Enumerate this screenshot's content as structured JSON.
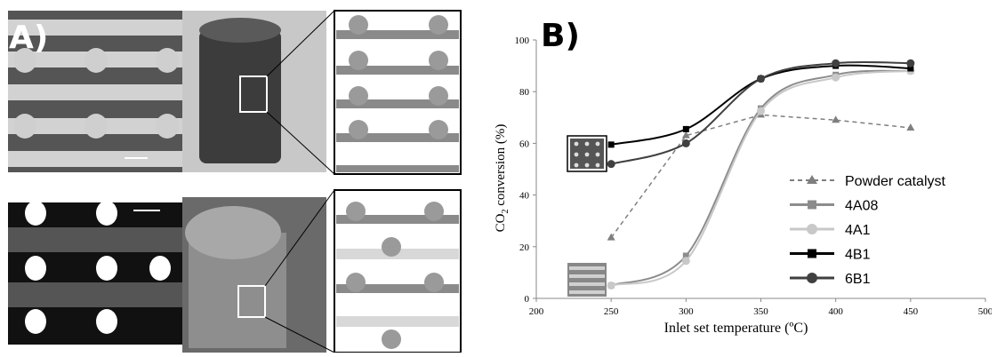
{
  "panel_a": {
    "label": "A)"
  },
  "panel_b": {
    "label": "B)"
  },
  "chart_data": {
    "type": "line",
    "xlabel": "Inlet set temperature (ºC)",
    "ylabel_main": "CO",
    "ylabel_sub": "2",
    "ylabel_rest": " conversion (%)",
    "xlim": [
      200,
      500
    ],
    "ylim": [
      0,
      100
    ],
    "x_ticks": [
      "200",
      "250",
      "300",
      "350",
      "400",
      "450",
      "500"
    ],
    "y_ticks": [
      "0",
      "20",
      "40",
      "60",
      "80",
      "100"
    ],
    "grid": false,
    "legend_position": "right",
    "x": [
      250,
      300,
      350,
      400,
      450
    ],
    "series": [
      {
        "name": "Powder catalyst",
        "values": [
          23.5,
          63,
          71,
          69,
          66
        ],
        "color": "#7f7f7f",
        "dash": true,
        "marker": "triangle"
      },
      {
        "name": "4A08",
        "values": [
          5,
          16.5,
          73.5,
          86.5,
          88
        ],
        "color": "#8c8c8c",
        "dash": false,
        "marker": "square"
      },
      {
        "name": "4A1",
        "values": [
          5,
          14.5,
          72.5,
          85.5,
          88
        ],
        "color": "#c8c8c8",
        "dash": false,
        "marker": "circle"
      },
      {
        "name": "4B1",
        "values": [
          59.5,
          65.5,
          85,
          90,
          89
        ],
        "color": "#000000",
        "dash": false,
        "marker": "square"
      },
      {
        "name": "6B1",
        "values": [
          52,
          60,
          85,
          91,
          91
        ],
        "color": "#404040",
        "dash": false,
        "marker": "circle"
      }
    ]
  }
}
